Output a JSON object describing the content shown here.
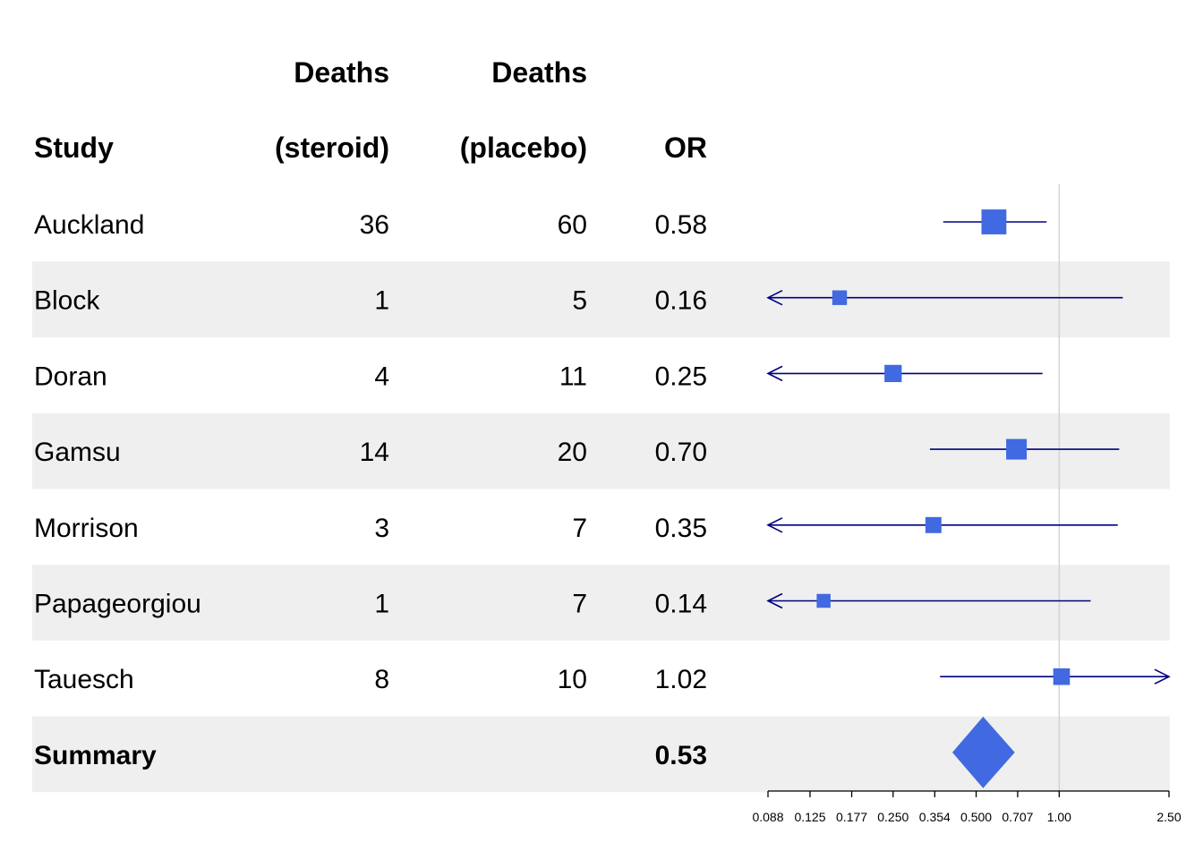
{
  "columns": {
    "study": [
      "",
      "Study"
    ],
    "deaths_steroid": [
      "Deaths",
      "(steroid)"
    ],
    "deaths_placebo": [
      "Deaths",
      "(placebo)"
    ],
    "or": [
      "",
      "OR"
    ]
  },
  "colors": {
    "band": "#efefef",
    "box": "#4169e1",
    "ci_line": "#000080",
    "ref_line": "#d3d3d3",
    "axis": "#000000"
  },
  "chart_data": {
    "type": "forest",
    "x_scale": "log",
    "xlim": [
      0.088,
      2.5
    ],
    "x_ticks": [
      0.088,
      0.125,
      0.177,
      0.25,
      0.354,
      0.5,
      0.707,
      1.0,
      2.5
    ],
    "x_tick_labels": [
      "0.088",
      "0.125",
      "0.177",
      "0.250",
      "0.354",
      "0.500",
      "0.707",
      "1.00",
      "2.50"
    ],
    "reference_line": 1.0,
    "studies": [
      {
        "name": "Auckland",
        "steroid": "36",
        "placebo": "60",
        "or_label": "0.58",
        "or": 0.58,
        "lower": 0.38,
        "upper": 0.9,
        "weight": 0.28
      },
      {
        "name": "Block",
        "steroid": "1",
        "placebo": "5",
        "or_label": "0.16",
        "or": 0.16,
        "lower": 0.015,
        "upper": 1.7,
        "weight": 0.05
      },
      {
        "name": "Doran",
        "steroid": "4",
        "placebo": "11",
        "or_label": "0.25",
        "or": 0.25,
        "lower": 0.06,
        "upper": 0.87,
        "weight": 0.09
      },
      {
        "name": "Gamsu",
        "steroid": "14",
        "placebo": "20",
        "or_label": "0.70",
        "or": 0.7,
        "lower": 0.34,
        "upper": 1.65,
        "weight": 0.16
      },
      {
        "name": "Morrison",
        "steroid": "3",
        "placebo": "7",
        "or_label": "0.35",
        "or": 0.35,
        "lower": 0.07,
        "upper": 1.63,
        "weight": 0.07
      },
      {
        "name": "Papageorgiou",
        "steroid": "1",
        "placebo": "7",
        "or_label": "0.14",
        "or": 0.14,
        "lower": 0.015,
        "upper": 1.3,
        "weight": 0.04
      },
      {
        "name": "Tauesch",
        "steroid": "8",
        "placebo": "10",
        "or_label": "1.02",
        "or": 1.02,
        "lower": 0.37,
        "upper": 2.8,
        "weight": 0.08
      }
    ],
    "summary": {
      "name": "Summary",
      "or_label": "0.53",
      "or": 0.53,
      "lower": 0.41,
      "upper": 0.69
    }
  }
}
